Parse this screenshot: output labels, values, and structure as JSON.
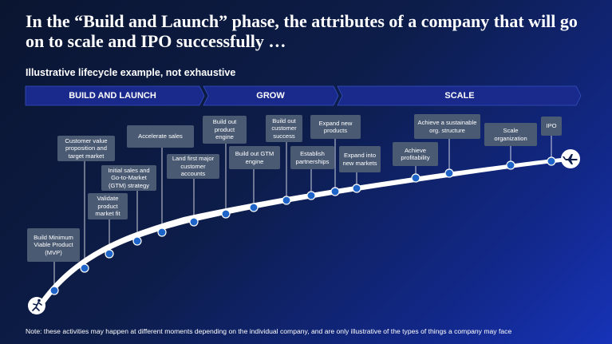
{
  "title": "In the “Build and Launch” phase, the attributes of a company that will go on to scale and IPO successfully …",
  "subtitle": "Illustrative lifecycle example, not exhaustive",
  "phases": [
    {
      "label": "BUILD AND LAUNCH"
    },
    {
      "label": "GROW"
    },
    {
      "label": "SCALE"
    }
  ],
  "milestones": [
    {
      "label": "Build Minimum Viable Product (MVP)"
    },
    {
      "label": "Validate product market fit"
    },
    {
      "label": "Customer value proposition and target market"
    },
    {
      "label": "Initial sales and Go-to-Market (GTM) strategy"
    },
    {
      "label": "Accelerate sales"
    },
    {
      "label": "Land first major customer accounts"
    },
    {
      "label": "Build out product engine"
    },
    {
      "label": "Build out GTM engine"
    },
    {
      "label": "Build out customer success"
    },
    {
      "label": "Establish partnerships"
    },
    {
      "label": "Expand new products"
    },
    {
      "label": "Expand into new markets"
    },
    {
      "label": "Achieve profitability"
    },
    {
      "label": "Achieve a sustainable org. structure"
    },
    {
      "label": "Scale organization"
    },
    {
      "label": "IPO"
    }
  ],
  "note": "Note: these activities may happen at different moments depending on the individual company, and are only illustrative of the types of things a company may face",
  "colors": {
    "phase_fill": "#1a2a8c",
    "node": "#1e63c8",
    "label_bg": "#4a5a73"
  }
}
